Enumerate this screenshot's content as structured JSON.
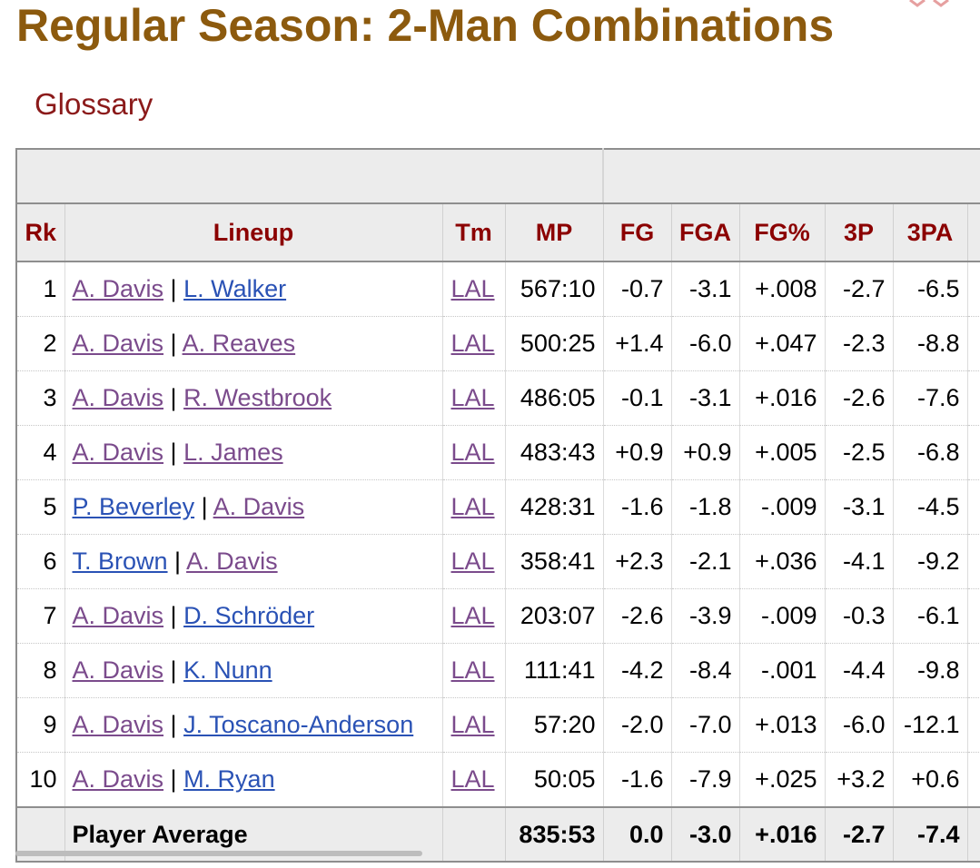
{
  "page": {
    "title": "Regular Season: 2-Man Combinations",
    "glossary_label": "Glossary"
  },
  "table": {
    "columns": [
      "Rk",
      "Lineup",
      "Tm",
      "MP",
      "FG",
      "FGA",
      "FG%",
      "3P",
      "3PA"
    ],
    "rows": [
      {
        "rk": "1",
        "p1": "A. Davis",
        "p1_state": "visited",
        "p2": "L. Walker",
        "p2_state": "link",
        "tm": "LAL",
        "mp": "567:10",
        "fg": "-0.7",
        "fga": "-3.1",
        "fgp": "+.008",
        "tp": "-2.7",
        "tpa": "-6.5"
      },
      {
        "rk": "2",
        "p1": "A. Davis",
        "p1_state": "visited",
        "p2": "A. Reaves",
        "p2_state": "visited",
        "tm": "LAL",
        "mp": "500:25",
        "fg": "+1.4",
        "fga": "-6.0",
        "fgp": "+.047",
        "tp": "-2.3",
        "tpa": "-8.8"
      },
      {
        "rk": "3",
        "p1": "A. Davis",
        "p1_state": "visited",
        "p2": "R. Westbrook",
        "p2_state": "visited",
        "tm": "LAL",
        "mp": "486:05",
        "fg": "-0.1",
        "fga": "-3.1",
        "fgp": "+.016",
        "tp": "-2.6",
        "tpa": "-7.6"
      },
      {
        "rk": "4",
        "p1": "A. Davis",
        "p1_state": "visited",
        "p2": "L. James",
        "p2_state": "visited",
        "tm": "LAL",
        "mp": "483:43",
        "fg": "+0.9",
        "fga": "+0.9",
        "fgp": "+.005",
        "tp": "-2.5",
        "tpa": "-6.8"
      },
      {
        "rk": "5",
        "p1": "P. Beverley",
        "p1_state": "link",
        "p2": "A. Davis",
        "p2_state": "visited",
        "tm": "LAL",
        "mp": "428:31",
        "fg": "-1.6",
        "fga": "-1.8",
        "fgp": "-.009",
        "tp": "-3.1",
        "tpa": "-4.5"
      },
      {
        "rk": "6",
        "p1": "T. Brown",
        "p1_state": "link",
        "p2": "A. Davis",
        "p2_state": "visited",
        "tm": "LAL",
        "mp": "358:41",
        "fg": "+2.3",
        "fga": "-2.1",
        "fgp": "+.036",
        "tp": "-4.1",
        "tpa": "-9.2"
      },
      {
        "rk": "7",
        "p1": "A. Davis",
        "p1_state": "visited",
        "p2": "D. Schröder",
        "p2_state": "link",
        "tm": "LAL",
        "mp": "203:07",
        "fg": "-2.6",
        "fga": "-3.9",
        "fgp": "-.009",
        "tp": "-0.3",
        "tpa": "-6.1"
      },
      {
        "rk": "8",
        "p1": "A. Davis",
        "p1_state": "visited",
        "p2": "K. Nunn",
        "p2_state": "link",
        "tm": "LAL",
        "mp": "111:41",
        "fg": "-4.2",
        "fga": "-8.4",
        "fgp": "-.001",
        "tp": "-4.4",
        "tpa": "-9.8"
      },
      {
        "rk": "9",
        "p1": "A. Davis",
        "p1_state": "visited",
        "p2": "J. Toscano-Anderson",
        "p2_state": "link",
        "tm": "LAL",
        "mp": "57:20",
        "fg": "-2.0",
        "fga": "-7.0",
        "fgp": "+.013",
        "tp": "-6.0",
        "tpa": "-12.1"
      },
      {
        "rk": "10",
        "p1": "A. Davis",
        "p1_state": "visited",
        "p2": "M. Ryan",
        "p2_state": "link",
        "tm": "LAL",
        "mp": "50:05",
        "fg": "-1.6",
        "fga": "-7.9",
        "fgp": "+.025",
        "tp": "+3.2",
        "tpa": "+0.6"
      }
    ],
    "average": {
      "label": "Player Average",
      "mp": "835:53",
      "fg": "0.0",
      "fga": "-3.0",
      "fgp": "+.016",
      "tp": "-2.7",
      "tpa": "-7.4"
    }
  },
  "colors": {
    "title": "#8c5a0e",
    "header_text": "#8b0000",
    "visited_link": "#7b4b8c",
    "link": "#2a52b5"
  }
}
